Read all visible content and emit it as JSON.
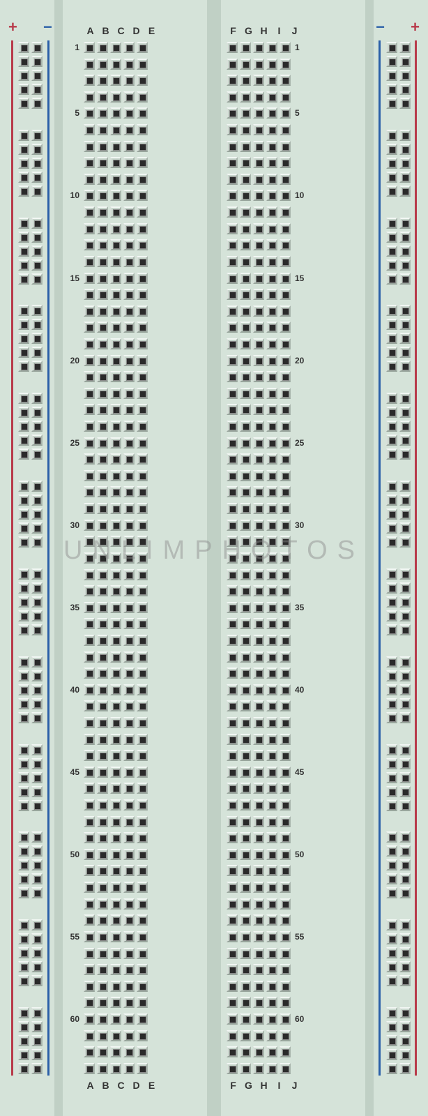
{
  "breadboard": {
    "background_color": "#d5e3d9",
    "divider_color": "#c0d0c5",
    "hole_outer": "#c8d6cc",
    "hole_dark": "#2a2a2a",
    "rail_positive_color": "#b83a4a",
    "rail_negative_color": "#2a5fa8",
    "label_color": "#333333",
    "columns_left": [
      "A",
      "B",
      "C",
      "D",
      "E"
    ],
    "columns_right": [
      "F",
      "G",
      "H",
      "I",
      "J"
    ],
    "rows": 63,
    "row_labels": [
      1,
      5,
      10,
      15,
      20,
      25,
      30,
      35,
      40,
      45,
      50,
      55,
      60
    ],
    "power_rail": {
      "groups": 12,
      "rows_per_group": 5,
      "cols": 2,
      "left": {
        "outer_symbol": "+",
        "outer_color": "#b83a4a",
        "inner_symbol": "−",
        "inner_color": "#2a5fa8"
      },
      "right": {
        "outer_symbol": "+",
        "outer_color": "#b83a4a",
        "inner_symbol": "−",
        "inner_color": "#2a5fa8"
      }
    }
  },
  "watermark": {
    "text": "UNLIMPHOTOS",
    "color": "#8a8a8a"
  }
}
